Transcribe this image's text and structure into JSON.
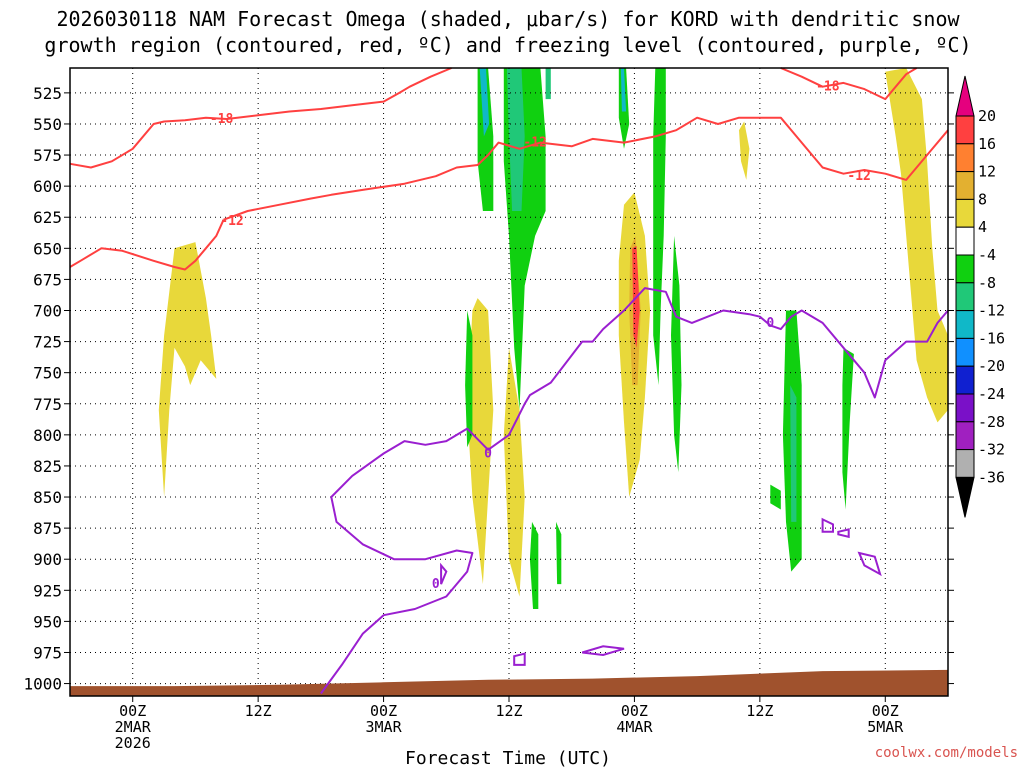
{
  "title_line1": "2026030118 NAM Forecast Omega (shaded, μbar/s) for KORD with dendritic snow",
  "title_line2": "growth region (contoured, red, ºC) and freezing level (contoured, purple, ºC)",
  "credit": "coolwx.com/models",
  "chart_data": {
    "type": "heatmap",
    "xlabel": "Forecast Time (UTC)",
    "ylabel": "",
    "x_range_hours": [
      0,
      84
    ],
    "y_range_mb": [
      505,
      1010
    ],
    "y_ticks": [
      525,
      550,
      575,
      600,
      625,
      650,
      675,
      700,
      725,
      750,
      775,
      800,
      825,
      850,
      875,
      900,
      925,
      950,
      975,
      1000
    ],
    "x_ticks": [
      {
        "hour": 6,
        "line1": "00Z",
        "line2": "2MAR",
        "line3": "2026"
      },
      {
        "hour": 18,
        "line1": "12Z",
        "line2": "",
        "line3": ""
      },
      {
        "hour": 30,
        "line1": "00Z",
        "line2": "3MAR",
        "line3": ""
      },
      {
        "hour": 42,
        "line1": "12Z",
        "line2": "",
        "line3": ""
      },
      {
        "hour": 54,
        "line1": "00Z",
        "line2": "4MAR",
        "line3": ""
      },
      {
        "hour": 66,
        "line1": "12Z",
        "line2": "",
        "line3": ""
      },
      {
        "hour": 78,
        "line1": "00Z",
        "line2": "5MAR",
        "line3": ""
      }
    ],
    "grid": true,
    "colorbar": {
      "labels": [
        "20",
        "16",
        "12",
        "8",
        "4",
        "-4",
        "-8",
        "-12",
        "-16",
        "-20",
        "-24",
        "-28",
        "-32",
        "-36"
      ],
      "colors": [
        "#e5007e",
        "#ff4040",
        "#ff8030",
        "#e3b030",
        "#e8d83a",
        "#ffffff",
        "#10d010",
        "#20c878",
        "#10b8c8",
        "#1090ff",
        "#1020d0",
        "#7a10c8",
        "#a020c0",
        "#b0b0b0",
        "#000000"
      ]
    },
    "contour_labels": {
      "red": [
        {
          "text": "-18",
          "hour": 14.5,
          "mb": 546
        },
        {
          "text": "-12",
          "hour": 15.5,
          "mb": 628
        },
        {
          "text": "-12",
          "hour": 44.5,
          "mb": 565
        },
        {
          "text": "-18",
          "hour": 72.5,
          "mb": 520
        },
        {
          "text": "-12",
          "hour": 75.5,
          "mb": 592
        }
      ],
      "purple": [
        {
          "text": "0",
          "hour": 40,
          "mb": 815
        },
        {
          "text": "0",
          "hour": 35,
          "mb": 920
        },
        {
          "text": "0",
          "hour": 67,
          "mb": 710
        }
      ]
    },
    "freezing_contour_0C": [
      [
        24,
        1008
      ],
      [
        26,
        985
      ],
      [
        28,
        960
      ],
      [
        30,
        945
      ],
      [
        33,
        940
      ],
      [
        36,
        930
      ],
      [
        38,
        910
      ],
      [
        38.5,
        895
      ],
      [
        37,
        893
      ],
      [
        34,
        900
      ],
      [
        31,
        900
      ],
      [
        28,
        888
      ],
      [
        25.5,
        870
      ],
      [
        25,
        850
      ],
      [
        27,
        833
      ],
      [
        30,
        815
      ],
      [
        32,
        805
      ],
      [
        34,
        808
      ],
      [
        36,
        805
      ],
      [
        38,
        795
      ],
      [
        40,
        812
      ],
      [
        42,
        800
      ],
      [
        43.5,
        775
      ],
      [
        44,
        768
      ],
      [
        46,
        758
      ],
      [
        49,
        725
      ],
      [
        50,
        725
      ],
      [
        51,
        715
      ],
      [
        53,
        700
      ],
      [
        55,
        682
      ],
      [
        57,
        685
      ],
      [
        58,
        705
      ],
      [
        59.5,
        710
      ],
      [
        61,
        705
      ],
      [
        62.5,
        700
      ],
      [
        65,
        703
      ],
      [
        66,
        705
      ],
      [
        67,
        712
      ],
      [
        68,
        715
      ],
      [
        69,
        705
      ],
      [
        70,
        700
      ],
      [
        72,
        710
      ],
      [
        74,
        730
      ],
      [
        76,
        750
      ],
      [
        77,
        770
      ],
      [
        77.5,
        755
      ],
      [
        78,
        740
      ],
      [
        80,
        725
      ],
      [
        82,
        725
      ],
      [
        83,
        710
      ],
      [
        84,
        700
      ]
    ],
    "dgz_minus12_contour": [
      [
        0,
        665
      ],
      [
        1,
        660
      ],
      [
        3,
        650
      ],
      [
        5,
        652
      ],
      [
        8,
        660
      ],
      [
        10,
        665
      ],
      [
        11,
        667
      ],
      [
        12,
        660
      ],
      [
        13,
        650
      ],
      [
        14,
        640
      ],
      [
        14.7,
        627
      ]
    ],
    "dgz_minus12_upper": [
      [
        14.7,
        627
      ],
      [
        17,
        620
      ],
      [
        20,
        615
      ],
      [
        23,
        610
      ],
      [
        25,
        607
      ],
      [
        28,
        603
      ],
      [
        32,
        598
      ],
      [
        35,
        592
      ],
      [
        37,
        585
      ],
      [
        39,
        583
      ],
      [
        40,
        575
      ],
      [
        41,
        565
      ],
      [
        43,
        570
      ],
      [
        45,
        565
      ],
      [
        48,
        568
      ],
      [
        50,
        562
      ],
      [
        53,
        565
      ],
      [
        56,
        560
      ],
      [
        58,
        555
      ],
      [
        60,
        545
      ],
      [
        62,
        550
      ],
      [
        64,
        545
      ],
      [
        66,
        545
      ],
      [
        68,
        545
      ],
      [
        70,
        565
      ],
      [
        72,
        585
      ],
      [
        74,
        590
      ],
      [
        76,
        587
      ],
      [
        78,
        590
      ],
      [
        80,
        595
      ],
      [
        82,
        575
      ],
      [
        84,
        555
      ]
    ],
    "dgz_minus18_contour": [
      [
        0,
        582
      ],
      [
        2,
        585
      ],
      [
        4,
        580
      ],
      [
        6,
        570
      ],
      [
        8,
        550
      ],
      [
        9,
        548
      ],
      [
        11,
        547
      ],
      [
        13,
        545
      ],
      [
        15,
        546
      ],
      [
        18,
        543
      ],
      [
        21,
        540
      ],
      [
        24,
        538
      ],
      [
        27,
        535
      ],
      [
        30,
        532
      ],
      [
        31.5,
        525
      ],
      [
        32.5,
        520
      ],
      [
        34.5,
        512
      ],
      [
        36.5,
        505
      ]
    ],
    "dgz_minus18_upper": [
      [
        68,
        505
      ],
      [
        70,
        512
      ],
      [
        72,
        520
      ],
      [
        74,
        517
      ],
      [
        76,
        522
      ],
      [
        78,
        530
      ],
      [
        80,
        510
      ],
      [
        81,
        505
      ]
    ],
    "omega_regions": [
      {
        "level": "4",
        "pts": [
          [
            10,
            650
          ],
          [
            12,
            645
          ],
          [
            13,
            690
          ],
          [
            13.5,
            720
          ],
          [
            14,
            755
          ],
          [
            12.5,
            740
          ],
          [
            11.5,
            760
          ],
          [
            11,
            745
          ],
          [
            10,
            730
          ],
          [
            9.5,
            780
          ],
          [
            9,
            850
          ],
          [
            8.5,
            780
          ],
          [
            9,
            720
          ]
        ]
      },
      {
        "level": "4",
        "pts": [
          [
            39,
            690
          ],
          [
            40,
            700
          ],
          [
            40.5,
            780
          ],
          [
            40,
            850
          ],
          [
            39.5,
            920
          ],
          [
            38.5,
            850
          ],
          [
            38,
            780
          ],
          [
            38.5,
            700
          ]
        ]
      },
      {
        "level": "4",
        "pts": [
          [
            42,
            730
          ],
          [
            43,
            780
          ],
          [
            43.5,
            850
          ],
          [
            43,
            930
          ],
          [
            42,
            900
          ],
          [
            41.5,
            800
          ]
        ]
      },
      {
        "level": "4",
        "pts": [
          [
            53,
            615
          ],
          [
            54,
            605
          ],
          [
            55,
            640
          ],
          [
            55.5,
            700
          ],
          [
            55,
            770
          ],
          [
            54.5,
            820
          ],
          [
            53.5,
            850
          ],
          [
            53,
            790
          ],
          [
            52.5,
            720
          ],
          [
            52.5,
            660
          ]
        ]
      },
      {
        "level": "4",
        "pts": [
          [
            78,
            508
          ],
          [
            80,
            505
          ],
          [
            81.5,
            530
          ],
          [
            82,
            580
          ],
          [
            82.5,
            650
          ],
          [
            83,
            700
          ],
          [
            84,
            720
          ],
          [
            84,
            780
          ],
          [
            83,
            790
          ],
          [
            82,
            770
          ],
          [
            81,
            740
          ],
          [
            80.5,
            690
          ],
          [
            80,
            640
          ],
          [
            79.5,
            590
          ],
          [
            79,
            560
          ]
        ]
      },
      {
        "level": "4",
        "pts": [
          [
            64,
            555
          ],
          [
            64.5,
            548
          ],
          [
            65,
            570
          ],
          [
            64.7,
            595
          ],
          [
            64.2,
            580
          ]
        ]
      },
      {
        "level": "8",
        "pts": [
          [
            53.6,
            650
          ],
          [
            54.1,
            640
          ],
          [
            54.6,
            700
          ],
          [
            54.3,
            760
          ],
          [
            53.8,
            760
          ],
          [
            53.5,
            700
          ]
        ]
      },
      {
        "level": "16",
        "pts": [
          [
            53.8,
            650
          ],
          [
            54.2,
            648
          ],
          [
            54.5,
            700
          ],
          [
            54.2,
            730
          ],
          [
            53.9,
            720
          ]
        ]
      },
      {
        "level": "-4",
        "pts": [
          [
            39,
            505
          ],
          [
            40,
            505
          ],
          [
            40.5,
            560
          ],
          [
            40.5,
            620
          ],
          [
            39.5,
            620
          ],
          [
            39,
            580
          ]
        ]
      },
      {
        "level": "-4",
        "pts": [
          [
            41.5,
            505
          ],
          [
            45,
            505
          ],
          [
            45.5,
            560
          ],
          [
            45.5,
            620
          ],
          [
            44.5,
            640
          ],
          [
            43.5,
            680
          ],
          [
            43,
            780
          ],
          [
            42.5,
            730
          ],
          [
            42,
            640
          ],
          [
            41.5,
            580
          ]
        ]
      },
      {
        "level": "-8",
        "pts": [
          [
            41.8,
            505
          ],
          [
            43.2,
            505
          ],
          [
            43.5,
            560
          ],
          [
            43.2,
            620
          ],
          [
            42.3,
            620
          ],
          [
            42,
            560
          ]
        ]
      },
      {
        "level": "-12",
        "pts": [
          [
            39.2,
            505
          ],
          [
            39.8,
            505
          ],
          [
            40.1,
            550
          ],
          [
            39.6,
            560
          ]
        ]
      },
      {
        "level": "-4",
        "pts": [
          [
            52.5,
            505
          ],
          [
            53.2,
            505
          ],
          [
            53.5,
            550
          ],
          [
            53,
            570
          ],
          [
            52.5,
            545
          ]
        ]
      },
      {
        "level": "-12",
        "pts": [
          [
            52.7,
            505
          ],
          [
            53,
            505
          ],
          [
            53.2,
            540
          ],
          [
            52.8,
            540
          ]
        ]
      },
      {
        "level": "-4",
        "pts": [
          [
            56,
            505
          ],
          [
            57,
            505
          ],
          [
            57,
            560
          ],
          [
            56.8,
            640
          ],
          [
            56.5,
            700
          ],
          [
            56.3,
            760
          ],
          [
            55.8,
            720
          ],
          [
            55.8,
            640
          ],
          [
            55.8,
            560
          ]
        ]
      },
      {
        "level": "-4",
        "pts": [
          [
            57.8,
            640
          ],
          [
            58.3,
            680
          ],
          [
            58.5,
            760
          ],
          [
            58.2,
            830
          ],
          [
            57.8,
            800
          ],
          [
            57.5,
            720
          ]
        ]
      },
      {
        "level": "-4",
        "pts": [
          [
            38,
            700
          ],
          [
            38.5,
            720
          ],
          [
            38.5,
            800
          ],
          [
            38,
            810
          ],
          [
            37.8,
            760
          ]
        ]
      },
      {
        "level": "-4",
        "pts": [
          [
            44.2,
            870
          ],
          [
            44.8,
            880
          ],
          [
            44.8,
            940
          ],
          [
            44.3,
            940
          ],
          [
            44,
            900
          ]
        ]
      },
      {
        "level": "-4",
        "pts": [
          [
            46.5,
            870
          ],
          [
            47,
            880
          ],
          [
            47,
            920
          ],
          [
            46.6,
            920
          ]
        ]
      },
      {
        "level": "-4",
        "pts": [
          [
            68.5,
            700
          ],
          [
            69.5,
            700
          ],
          [
            70,
            760
          ],
          [
            70,
            840
          ],
          [
            70,
            900
          ],
          [
            69,
            910
          ],
          [
            68.5,
            870
          ],
          [
            68.2,
            800
          ]
        ]
      },
      {
        "level": "-8",
        "pts": [
          [
            68.9,
            760
          ],
          [
            69.5,
            770
          ],
          [
            69.5,
            870
          ],
          [
            69,
            870
          ]
        ]
      },
      {
        "level": "-4",
        "pts": [
          [
            67,
            840
          ],
          [
            68,
            845
          ],
          [
            68,
            860
          ],
          [
            67,
            855
          ]
        ]
      },
      {
        "level": "-4",
        "pts": [
          [
            74,
            730
          ],
          [
            75,
            735
          ],
          [
            74.6,
            790
          ],
          [
            74.2,
            860
          ],
          [
            73.9,
            830
          ],
          [
            73.9,
            760
          ]
        ]
      },
      {
        "level": "-8",
        "pts": [
          [
            45.5,
            505
          ],
          [
            46,
            505
          ],
          [
            46,
            530
          ],
          [
            45.5,
            530
          ]
        ]
      }
    ],
    "ground_surface": [
      [
        0,
        1002
      ],
      [
        10,
        1002
      ],
      [
        20,
        1001
      ],
      [
        30,
        999
      ],
      [
        40,
        997
      ],
      [
        50,
        996
      ],
      [
        60,
        994
      ],
      [
        66,
        992
      ],
      [
        72,
        990
      ],
      [
        84,
        989
      ]
    ]
  }
}
